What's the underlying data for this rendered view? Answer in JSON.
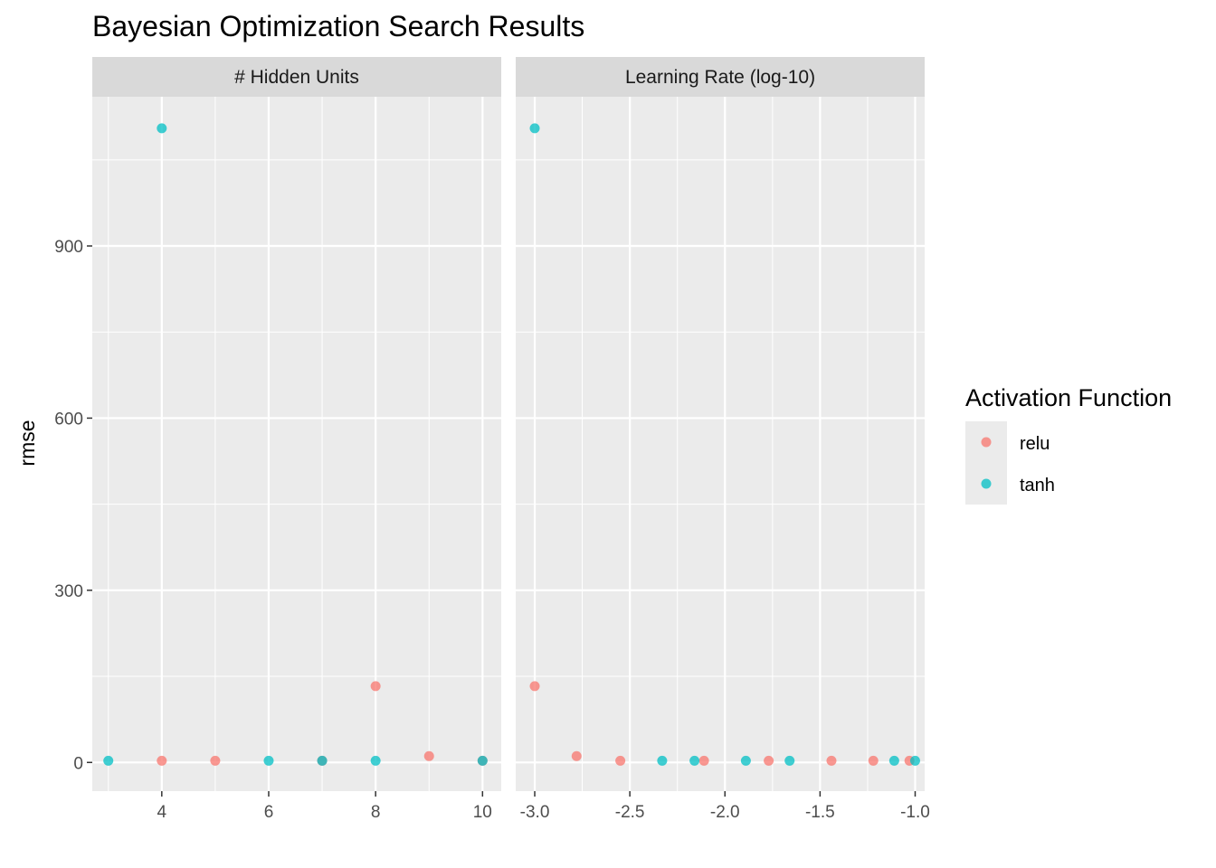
{
  "chart_data": {
    "type": "scatter",
    "title": "Bayesian Optimization Search Results",
    "ylabel": "rmse",
    "ylim": [
      -50,
      1160
    ],
    "yticks": [
      0,
      300,
      600,
      900
    ],
    "legend": {
      "title": "Activation Function",
      "placement": "right",
      "entries": [
        {
          "label": "relu",
          "color": "#F8766D"
        },
        {
          "label": "tanh",
          "color": "#00BFC4"
        }
      ]
    },
    "panels": [
      {
        "strip": "# Hidden Units",
        "xlim": [
          2.7,
          10.35
        ],
        "xticks": [
          4,
          6,
          8,
          10
        ],
        "xtick_labels": [
          "4",
          "6",
          "8",
          "10"
        ],
        "series": [
          {
            "name": "relu",
            "color": "#F8766D",
            "points": [
              [
                4,
                3
              ],
              [
                5,
                3
              ],
              [
                7,
                3
              ],
              [
                8,
                133
              ],
              [
                9,
                11
              ],
              [
                10,
                3
              ]
            ]
          },
          {
            "name": "tanh",
            "color": "#00BFC4",
            "points": [
              [
                3,
                3
              ],
              [
                4,
                1105
              ],
              [
                6,
                3
              ],
              [
                7,
                3
              ],
              [
                8,
                3
              ],
              [
                10,
                3
              ]
            ]
          }
        ]
      },
      {
        "strip": "Learning Rate (log-10)",
        "xlim": [
          -3.1,
          -0.95
        ],
        "xticks": [
          -3.0,
          -2.5,
          -2.0,
          -1.5,
          -1.0
        ],
        "xtick_labels": [
          "-3.0",
          "-2.5",
          "-2.0",
          "-1.5",
          "-1.0"
        ],
        "series": [
          {
            "name": "relu",
            "color": "#F8766D",
            "points": [
              [
                -3.0,
                133
              ],
              [
                -2.78,
                11
              ],
              [
                -2.55,
                3
              ],
              [
                -2.11,
                3
              ],
              [
                -1.77,
                3
              ],
              [
                -1.44,
                3
              ],
              [
                -1.22,
                3
              ],
              [
                -1.03,
                3
              ]
            ]
          },
          {
            "name": "tanh",
            "color": "#00BFC4",
            "points": [
              [
                -3.0,
                1105
              ],
              [
                -2.33,
                3
              ],
              [
                -2.16,
                3
              ],
              [
                -1.89,
                3
              ],
              [
                -1.66,
                3
              ],
              [
                -1.11,
                3
              ],
              [
                -1.0,
                3
              ]
            ]
          }
        ]
      }
    ]
  }
}
